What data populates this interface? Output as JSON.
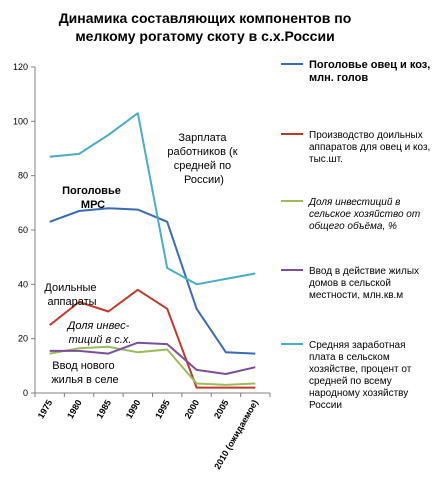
{
  "chart_data": {
    "type": "line",
    "title": [
      "Динамика составляющих компонентов по",
      "мелкому рогатому скоту в с.х.России"
    ],
    "categories": [
      "1975",
      "1980",
      "1985",
      "1990",
      "1995",
      "2000",
      "2005",
      "2010 (ожидаемое)"
    ],
    "ylim": [
      0,
      120
    ],
    "yticks": [
      "0",
      "20",
      "40",
      "60",
      "80",
      "100",
      "120"
    ],
    "grid": false,
    "legend_position": "right",
    "series": [
      {
        "name": "Поголовье овец и коз, млн. голов",
        "color": "#3a6bb4",
        "style": "bold",
        "values": [
          63,
          67,
          68,
          67.5,
          63,
          31,
          15,
          14.5
        ]
      },
      {
        "name": "Производство доильных аппаратов для овец и коз, тыс.шт.",
        "color": "#c0392b",
        "style": "normal",
        "values": [
          25,
          33.5,
          30,
          38,
          31,
          2,
          2,
          2
        ]
      },
      {
        "name": "Доля инвестиций в сельское хозяйство от общего объёма, %",
        "color": "#9bbb59",
        "style": "italic",
        "values": [
          14.5,
          16.5,
          17,
          15,
          16,
          3.5,
          3,
          3.5
        ]
      },
      {
        "name": "Ввод в действие жилых домов в сельской местности, млн.кв.м",
        "color": "#7b4f9e",
        "style": "normal",
        "values": [
          15.5,
          15.5,
          14.5,
          18.5,
          18,
          8.5,
          7,
          9.5
        ]
      },
      {
        "name": "Средняя заработная плата в сельском хозяйстве, процент от средней по всему народному хозяйству России",
        "color": "#4bacc6",
        "style": "normal",
        "values": [
          87,
          88,
          95,
          103,
          46,
          40,
          42,
          44
        ]
      }
    ],
    "annotations": [
      {
        "lines": [
          "Зарплата",
          "работников (к",
          "средней по",
          "России)"
        ],
        "style": "normal"
      },
      {
        "lines": [
          "Поголовье",
          "МРС"
        ],
        "style": "bold"
      },
      {
        "lines": [
          "Доильные",
          "аппараты"
        ],
        "style": "normal"
      },
      {
        "lines": [
          "Доля инвес-",
          "тиций в с.х."
        ],
        "style": "italic"
      },
      {
        "lines": [
          "Ввод нового",
          "жилья в селе"
        ],
        "style": "normal"
      }
    ]
  },
  "legend_lines": [
    [
      "Поголовье овец и коз,",
      "млн. голов"
    ],
    [
      "Производство доильных",
      "аппаратов для овец и коз,",
      "тыс.шт."
    ],
    [
      "Доля инвестиций в",
      "сельское хозяйство от",
      "общего объёма, %"
    ],
    [
      "Ввод в действие жилых",
      "домов в сельской",
      "местности, млн.кв.м"
    ],
    [
      "Средняя заработная",
      "плата в сельском",
      "хозяйстве, процент от",
      "средней по всему",
      "народному хозяйству",
      "России"
    ]
  ]
}
